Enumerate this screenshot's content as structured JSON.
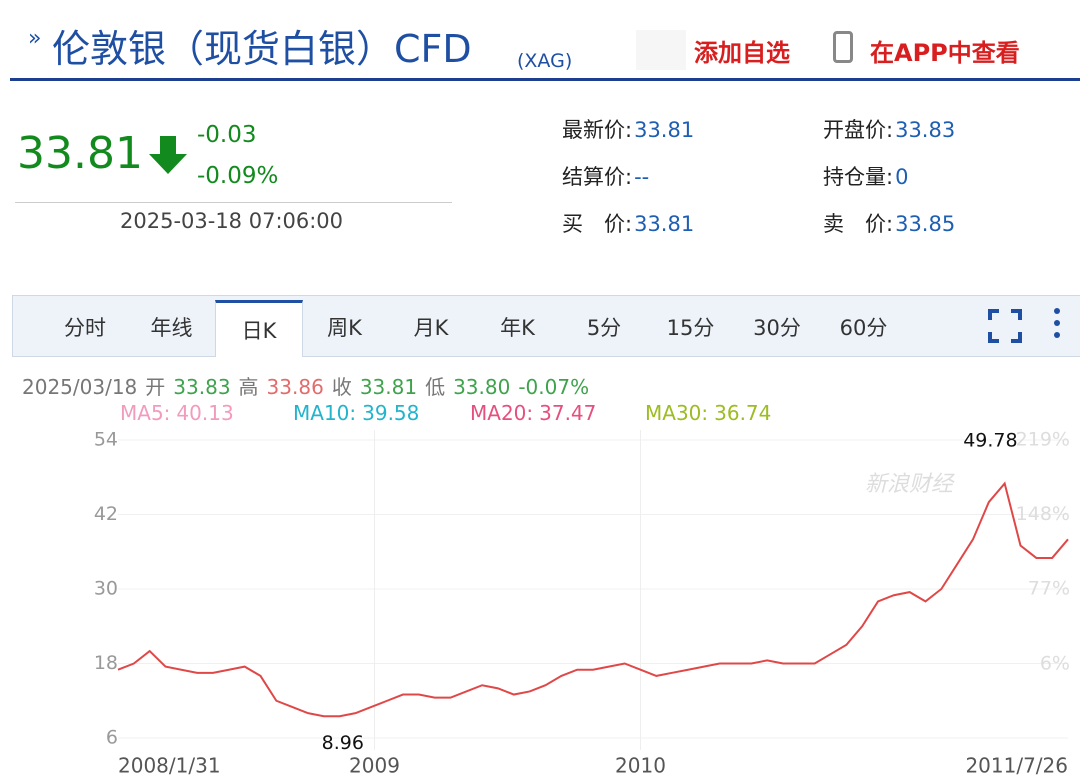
{
  "header": {
    "title": "伦敦银（现货白银）CFD",
    "code": "(XAG)",
    "add": "添加自选",
    "app": "在APP中查看"
  },
  "quote": {
    "price": "33.81",
    "change": "-0.03",
    "pct": "-0.09%",
    "time": "2025-03-18 07:06:00",
    "fields": [
      {
        "label": "最新价:",
        "value": "33.81"
      },
      {
        "label": "开盘价:",
        "value": "33.83"
      },
      {
        "label": "结算价:",
        "value": "--"
      },
      {
        "label": "持仓量:",
        "value": "0"
      },
      {
        "label": "买　价:",
        "value": "33.81"
      },
      {
        "label": "卖　价:",
        "value": "33.85"
      }
    ]
  },
  "tabs": [
    "分时",
    "年线",
    "日K",
    "周K",
    "月K",
    "年K",
    "5分",
    "15分",
    "30分",
    "60分"
  ],
  "active_tab": 2,
  "kline_info": {
    "date": "2025/03/18",
    "items": [
      {
        "label": "开",
        "value": "33.83",
        "color": "#3fa34d"
      },
      {
        "label": "高",
        "value": "33.86",
        "color": "#e26b6b"
      },
      {
        "label": "收",
        "value": "33.81",
        "color": "#3fa34d"
      },
      {
        "label": "低",
        "value": "33.80",
        "color": "#3fa34d"
      }
    ],
    "pct": "-0.07%",
    "pct_color": "#3fa34d"
  },
  "chart_data": {
    "type": "line",
    "color": "#e04848",
    "watermark": "新浪财经",
    "ma_legend": [
      {
        "name": "MA5:",
        "value": "40.13",
        "color": "#f29bbd"
      },
      {
        "name": "MA10:",
        "value": "39.58",
        "color": "#22b4cc"
      },
      {
        "name": "MA20:",
        "value": "37.47",
        "color": "#e5507e"
      },
      {
        "name": "MA30:",
        "value": "36.74",
        "color": "#9cbc22"
      }
    ],
    "x": [
      0,
      1,
      2,
      3,
      4,
      5,
      6,
      7,
      8,
      9,
      10,
      11,
      12,
      13,
      14,
      15,
      16,
      17,
      18,
      19,
      20,
      21,
      22,
      23,
      24,
      25,
      26,
      27,
      28,
      29,
      30,
      31,
      32,
      33,
      34,
      35,
      36,
      37,
      38,
      39,
      40,
      41,
      42,
      43,
      44,
      45,
      46,
      47,
      48,
      49,
      50,
      51,
      52,
      53,
      54,
      55,
      56,
      57,
      58,
      59,
      60
    ],
    "values": [
      17,
      18,
      20,
      17.5,
      17,
      16.5,
      16.5,
      17,
      17.5,
      16,
      12,
      11,
      10,
      9.5,
      9.5,
      10,
      11,
      12,
      13,
      13,
      12.5,
      12.5,
      13.5,
      14.5,
      14,
      13,
      13.5,
      14.5,
      16,
      17,
      17,
      17.5,
      18,
      17,
      16,
      16.5,
      17,
      17.5,
      18,
      18,
      18,
      18.5,
      18,
      18,
      18,
      19.5,
      21,
      24,
      28,
      29,
      29.5,
      28,
      30,
      34,
      38,
      44,
      47,
      37,
      35,
      35,
      38
    ],
    "xlim": [
      0,
      60
    ],
    "xticks": [
      {
        "value": 0,
        "label": "2008/1/31"
      },
      {
        "value": 16.2,
        "label": "2009"
      },
      {
        "value": 33,
        "label": "2010"
      },
      {
        "value": 60,
        "label": "2011/7/26"
      }
    ],
    "ylim": [
      6,
      54
    ],
    "yticks": [
      6,
      18,
      30,
      42,
      54
    ],
    "y2lim": [
      -64.6,
      219
    ],
    "y2ticks": [
      {
        "value": 6,
        "label": "6%"
      },
      {
        "value": 77,
        "label": "77%"
      },
      {
        "value": 148,
        "label": "148%"
      },
      {
        "value": 219,
        "label": "219%"
      }
    ],
    "annotations": [
      {
        "x": 55.1,
        "y": 49.78
      },
      {
        "x": 14.2,
        "y": 8.96
      }
    ],
    "grid": true
  }
}
